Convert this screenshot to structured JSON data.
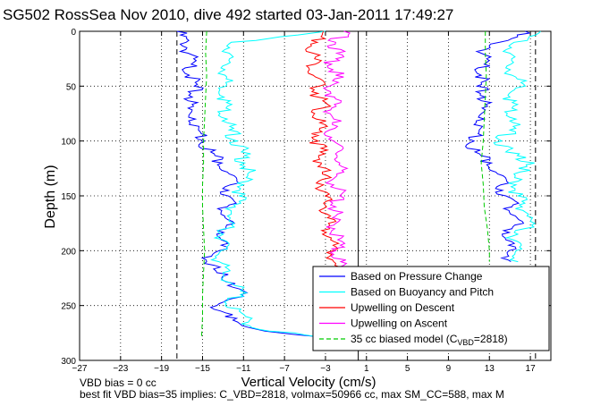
{
  "chart_data": {
    "type": "line",
    "title": "SG502 RossSea Nov 2010, dive 492 started 03-Jan-2011 17:49:27",
    "xlabel": "Vertical Velocity (cm/s)",
    "ylabel": "Depth (m)",
    "xlim": [
      -27,
      19
    ],
    "ylim": [
      0,
      300
    ],
    "y_reversed": true,
    "grid": true,
    "legend_position": "bottom-right",
    "xticks": [
      -27,
      -23,
      -19,
      -15,
      -11,
      -7,
      -3,
      1,
      5,
      9,
      13,
      17
    ],
    "yticks": [
      0,
      50,
      100,
      150,
      200,
      250,
      300
    ],
    "vertical_lines": [
      {
        "x": -17.5,
        "style": "dashed",
        "color": "#000000"
      },
      {
        "x": 17.5,
        "style": "dashed",
        "color": "#000000"
      },
      {
        "x": 0.2,
        "style": "solid",
        "color": "#000000"
      }
    ],
    "series": [
      {
        "name": "Based on Pressure Change",
        "color": "#0000ff",
        "style": "solid",
        "segments": [
          {
            "depth": [
              0,
              10,
              20,
              30,
              40,
              50,
              60,
              70,
              80,
              90,
              100,
              110,
              120,
              130,
              140,
              150,
              160,
              170,
              180,
              190,
              200,
              210,
              220,
              230,
              240,
              250,
              260,
              270,
              280
            ],
            "velocity": [
              -17.5,
              -16.6,
              -16.4,
              -16.1,
              -16.3,
              -15.8,
              -16.0,
              -16.4,
              -15.7,
              -15.4,
              -14.8,
              -14.2,
              -13.1,
              -12.4,
              -12.3,
              -12.5,
              -12.6,
              -12.8,
              -12.7,
              -13.2,
              -13.4,
              -14.6,
              -13.6,
              -11.8,
              -11.2,
              -13.6,
              -12.8,
              -10.5,
              -3.5
            ]
          },
          {
            "depth": [
              0,
              10,
              20,
              30,
              40,
              50,
              60,
              70,
              80,
              90,
              100,
              110,
              120,
              130,
              140,
              150,
              160,
              170,
              180,
              190,
              200,
              210
            ],
            "velocity": [
              16.5,
              14.0,
              12.2,
              12.5,
              12.2,
              11.8,
              12.6,
              12.3,
              12.5,
              12.0,
              11.5,
              11.6,
              13.2,
              13.8,
              14.1,
              14.6,
              15.2,
              15.7,
              15.2,
              14.6,
              14.9,
              15.1
            ]
          }
        ]
      },
      {
        "name": "Based on Buoyancy and Pitch",
        "color": "#00ffff",
        "style": "solid",
        "segments": [
          {
            "depth": [
              0,
              10,
              20,
              30,
              40,
              50,
              60,
              70,
              80,
              90,
              100,
              110,
              120,
              130,
              140,
              150,
              160,
              170,
              180,
              190,
              200,
              210,
              220,
              230,
              240,
              250,
              260,
              270,
              280
            ],
            "velocity": [
              -3.0,
              -12.2,
              -12.4,
              -12.6,
              -12.8,
              -12.7,
              -12.9,
              -12.7,
              -12.6,
              -12.4,
              -11.6,
              -11.2,
              -10.9,
              -10.6,
              -11.0,
              -11.4,
              -11.8,
              -12.3,
              -12.8,
              -13.0,
              -13.2,
              -13.4,
              -13.0,
              -12.1,
              -11.3,
              -12.8,
              -10.8,
              -10.2,
              -3.2
            ]
          },
          {
            "depth": [
              0,
              10,
              20,
              30,
              40,
              50,
              60,
              70,
              80,
              90,
              100,
              110,
              120,
              130,
              140,
              150,
              160,
              170,
              180,
              190,
              200,
              210
            ],
            "velocity": [
              18.0,
              15.4,
              15.0,
              15.1,
              15.2,
              16.5,
              15.0,
              15.2,
              15.6,
              15.0,
              14.2,
              14.6,
              17.4,
              15.4,
              15.6,
              15.8,
              16.2,
              17.2,
              16.4,
              15.3,
              15.6,
              15.8
            ]
          }
        ]
      },
      {
        "name": "Upwelling on Descent",
        "color": "#ff0000",
        "style": "solid",
        "segments": [
          {
            "depth": [
              0,
              10,
              20,
              30,
              40,
              50,
              60,
              70,
              80,
              90,
              100,
              110,
              120,
              130,
              140,
              150,
              160,
              170,
              180,
              190,
              200,
              210,
              220,
              230,
              240,
              250,
              260,
              270,
              280
            ],
            "velocity": [
              -3.2,
              -3.8,
              -4.2,
              -4.0,
              -4.2,
              -3.6,
              -3.7,
              -3.3,
              -3.9,
              -3.6,
              -3.7,
              -3.5,
              -3.4,
              -3.3,
              -3.2,
              -3.0,
              -2.9,
              -2.8,
              -2.6,
              -2.5,
              -2.3,
              -2.2,
              -2.4,
              -2.2,
              -2.6,
              -3.0,
              -3.4,
              -3.6,
              -4.0
            ]
          }
        ]
      },
      {
        "name": "Upwelling on Ascent",
        "color": "#ff00ff",
        "style": "solid",
        "segments": [
          {
            "depth": [
              0,
              10,
              20,
              30,
              40,
              50,
              60,
              70,
              80,
              90,
              100,
              110,
              120,
              130,
              140,
              150,
              160,
              170,
              180,
              190,
              200,
              210,
              220,
              230,
              240
            ],
            "velocity": [
              -1.2,
              -2.0,
              -1.9,
              -2.4,
              -2.0,
              -2.6,
              -2.1,
              -2.4,
              -2.2,
              -2.6,
              -2.2,
              -1.8,
              -1.6,
              -1.9,
              -2.2,
              -1.6,
              -2.0,
              -2.3,
              -2.1,
              -1.8,
              -2.0,
              -1.5,
              -2.0,
              -1.7,
              -1.9
            ]
          }
        ]
      },
      {
        "name": "35 cc biased model (C_VBD=2818)",
        "color": "#00cc00",
        "style": "dashed",
        "segments": [
          {
            "depth": [
              0,
              20,
              40,
              60,
              80,
              100,
              120,
              140,
              160,
              180,
              200,
              220,
              240,
              260,
              280
            ],
            "velocity": [
              -14.6,
              -14.7,
              -14.6,
              -14.7,
              -14.8,
              -14.9,
              -14.9,
              -15.0,
              -15.0,
              -14.9,
              -14.8,
              -14.9,
              -15.0,
              -15.0,
              -15.1
            ]
          },
          {
            "depth": [
              0,
              20,
              40,
              60,
              80,
              100,
              120,
              140,
              160,
              180,
              200,
              210
            ],
            "velocity": [
              12.6,
              12.6,
              12.7,
              12.6,
              12.5,
              12.4,
              12.2,
              12.4,
              12.5,
              12.8,
              13.0,
              13.0
            ]
          }
        ]
      }
    ]
  },
  "legend": {
    "items": [
      {
        "label": "Based on Pressure Change",
        "color": "#0000ff",
        "dash": false
      },
      {
        "label": "Based on Buoyancy and Pitch",
        "color": "#00ffff",
        "dash": false
      },
      {
        "label": "Upwelling on Descent",
        "color": "#ff0000",
        "dash": false
      },
      {
        "label": "Upwelling on Ascent",
        "color": "#ff00ff",
        "dash": false
      },
      {
        "label": "35 cc biased model (C",
        "sub": "VBD",
        "suffix": "=2818)",
        "color": "#00cc00",
        "dash": true
      }
    ]
  },
  "footer": {
    "line1": "VBD bias = 0 cc",
    "line2": "best fit VBD bias=35 implies: C_VBD=2818, volmax=50966 cc, max SM_CC=588, max M"
  }
}
